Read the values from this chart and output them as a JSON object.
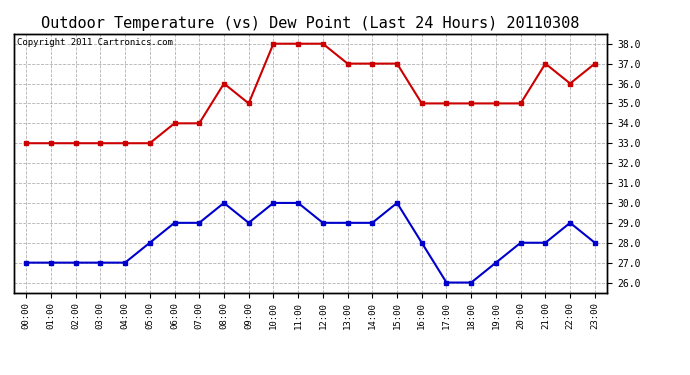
{
  "title": "Outdoor Temperature (vs) Dew Point (Last 24 Hours) 20110308",
  "copyright": "Copyright 2011 Cartronics.com",
  "hours": [
    "00:00",
    "01:00",
    "02:00",
    "03:00",
    "04:00",
    "05:00",
    "06:00",
    "07:00",
    "08:00",
    "09:00",
    "10:00",
    "11:00",
    "12:00",
    "13:00",
    "14:00",
    "15:00",
    "16:00",
    "17:00",
    "18:00",
    "19:00",
    "20:00",
    "21:00",
    "22:00",
    "23:00"
  ],
  "temp": [
    33.0,
    33.0,
    33.0,
    33.0,
    33.0,
    33.0,
    34.0,
    34.0,
    36.0,
    35.0,
    38.0,
    38.0,
    38.0,
    37.0,
    37.0,
    37.0,
    35.0,
    35.0,
    35.0,
    35.0,
    35.0,
    37.0,
    36.0,
    37.0
  ],
  "dew": [
    27.0,
    27.0,
    27.0,
    27.0,
    27.0,
    28.0,
    29.0,
    29.0,
    30.0,
    29.0,
    30.0,
    30.0,
    29.0,
    29.0,
    29.0,
    30.0,
    28.0,
    26.0,
    26.0,
    27.0,
    28.0,
    28.0,
    29.0,
    28.0
  ],
  "temp_color": "#cc0000",
  "dew_color": "#0000cc",
  "bg_color": "#ffffff",
  "plot_bg_color": "#ffffff",
  "grid_color": "#aaaaaa",
  "ylim_min": 25.5,
  "ylim_max": 38.5,
  "yticks": [
    26.0,
    27.0,
    28.0,
    29.0,
    30.0,
    31.0,
    32.0,
    33.0,
    34.0,
    35.0,
    36.0,
    37.0,
    38.0
  ],
  "title_fontsize": 11,
  "copyright_fontsize": 6.5,
  "marker": "s",
  "marker_size": 3,
  "linewidth": 1.5
}
